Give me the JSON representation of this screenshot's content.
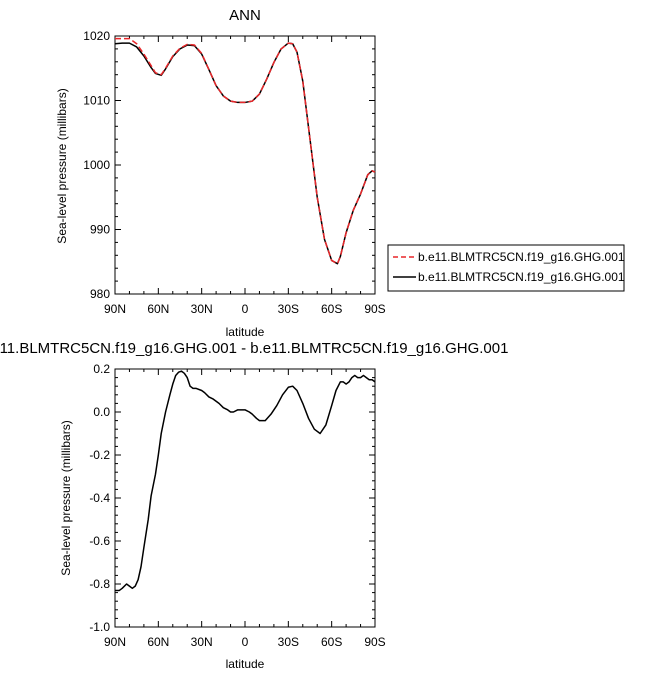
{
  "chart_data": [
    {
      "type": "line",
      "title": "ANN",
      "xlabel": "latitude",
      "ylabel": "Sea-level pressure (millibars)",
      "xlim": [
        90,
        -90
      ],
      "ylim": [
        980,
        1020
      ],
      "xticks": [
        90,
        60,
        30,
        0,
        -30,
        -60,
        -90
      ],
      "xtick_labels": [
        "90N",
        "60N",
        "30N",
        "0",
        "30S",
        "60S",
        "90S"
      ],
      "yticks": [
        980,
        990,
        1000,
        1010,
        1020
      ],
      "ytick_labels": [
        "980",
        "990",
        "1000",
        "1010",
        "1020"
      ],
      "legend_position": "right",
      "series": [
        {
          "name": "b.e11.BLMTRC5CN.f19_g16.GHG.001",
          "color": "#e8272a",
          "dash": "dashed",
          "x": [
            90,
            85,
            80,
            75,
            70,
            65,
            62,
            58,
            55,
            50,
            45,
            40,
            35,
            30,
            25,
            20,
            15,
            10,
            5,
            0,
            -5,
            -10,
            -15,
            -20,
            -25,
            -30,
            -33,
            -36,
            -40,
            -45,
            -50,
            -55,
            -60,
            -64,
            -66,
            -70,
            -75,
            -80,
            -85,
            -88,
            -90
          ],
          "y": [
            1019.6,
            1019.6,
            1019.6,
            1018.8,
            1017.2,
            1015.4,
            1014.3,
            1014.0,
            1015.0,
            1016.9,
            1018.1,
            1018.7,
            1018.6,
            1017.3,
            1014.8,
            1012.3,
            1010.7,
            1009.9,
            1009.7,
            1009.7,
            1009.9,
            1011.0,
            1013.3,
            1015.9,
            1018.0,
            1018.9,
            1018.8,
            1017.5,
            1013.0,
            1004.0,
            995.0,
            988.5,
            985.2,
            984.7,
            985.8,
            989.5,
            993.0,
            995.5,
            998.5,
            999.1,
            998.9
          ]
        },
        {
          "name": "b.e11.BLMTRC5CN.f19_g16.GHG.001",
          "color": "#000000",
          "dash": "solid",
          "x": [
            90,
            85,
            80,
            75,
            70,
            65,
            62,
            58,
            55,
            50,
            45,
            40,
            35,
            30,
            25,
            20,
            15,
            10,
            5,
            0,
            -5,
            -10,
            -15,
            -20,
            -25,
            -30,
            -33,
            -36,
            -40,
            -45,
            -50,
            -55,
            -60,
            -64,
            -66,
            -70,
            -75,
            -80,
            -85,
            -88,
            -90
          ],
          "y": [
            1018.8,
            1018.9,
            1018.9,
            1018.3,
            1016.9,
            1015.1,
            1014.2,
            1013.9,
            1014.9,
            1016.8,
            1018.0,
            1018.6,
            1018.5,
            1017.2,
            1014.8,
            1012.3,
            1010.7,
            1009.9,
            1009.7,
            1009.7,
            1009.9,
            1011.0,
            1013.3,
            1015.9,
            1018.0,
            1018.9,
            1018.8,
            1017.5,
            1013.0,
            1004.0,
            995.0,
            988.5,
            985.2,
            984.7,
            985.8,
            989.5,
            993.0,
            995.5,
            998.5,
            999.1,
            998.9
          ]
        }
      ]
    },
    {
      "type": "line",
      "title": "11.BLMTRC5CN.f19_g16.GHG.001 - b.e11.BLMTRC5CN.f19_g16.GHG.001",
      "xlabel": "latitude",
      "ylabel": "Sea-level pressure (millibars)",
      "xlim": [
        90,
        -90
      ],
      "ylim": [
        -1.0,
        0.2
      ],
      "xticks": [
        90,
        60,
        30,
        0,
        -30,
        -60,
        -90
      ],
      "xtick_labels": [
        "90N",
        "60N",
        "30N",
        "0",
        "30S",
        "60S",
        "90S"
      ],
      "yticks": [
        -1.0,
        -0.8,
        -0.6,
        -0.4,
        -0.2,
        0.0,
        0.2
      ],
      "ytick_labels": [
        "-1.0",
        "-0.8",
        "-0.6",
        "-0.4",
        "-0.2",
        "0.0",
        "0.2"
      ],
      "series": [
        {
          "color": "#000000",
          "dash": "solid",
          "x": [
            90,
            87,
            85,
            82,
            80,
            78,
            76,
            74,
            72,
            70,
            67,
            65,
            62,
            60,
            58,
            55,
            52,
            50,
            48,
            46,
            44,
            42,
            40,
            38,
            36,
            34,
            30,
            28,
            25,
            22,
            20,
            18,
            15,
            12,
            10,
            8,
            5,
            2,
            0,
            -3,
            -5,
            -8,
            -10,
            -14,
            -18,
            -22,
            -26,
            -30,
            -33,
            -36,
            -40,
            -44,
            -48,
            -52,
            -56,
            -60,
            -63,
            -66,
            -68,
            -70,
            -72,
            -74,
            -76,
            -78,
            -80,
            -82,
            -84,
            -86,
            -88,
            -90
          ],
          "y": [
            -0.83,
            -0.83,
            -0.82,
            -0.8,
            -0.81,
            -0.82,
            -0.81,
            -0.78,
            -0.72,
            -0.63,
            -0.5,
            -0.39,
            -0.29,
            -0.2,
            -0.1,
            0.0,
            0.08,
            0.13,
            0.17,
            0.185,
            0.19,
            0.18,
            0.16,
            0.12,
            0.11,
            0.11,
            0.1,
            0.09,
            0.07,
            0.06,
            0.05,
            0.04,
            0.02,
            0.01,
            0.0,
            0.0,
            0.01,
            0.01,
            0.01,
            0.0,
            -0.01,
            -0.03,
            -0.04,
            -0.04,
            -0.01,
            0.03,
            0.08,
            0.115,
            0.12,
            0.1,
            0.04,
            -0.03,
            -0.08,
            -0.1,
            -0.06,
            0.03,
            0.1,
            0.14,
            0.14,
            0.13,
            0.14,
            0.16,
            0.17,
            0.16,
            0.16,
            0.17,
            0.16,
            0.15,
            0.15,
            0.14
          ]
        }
      ]
    }
  ]
}
